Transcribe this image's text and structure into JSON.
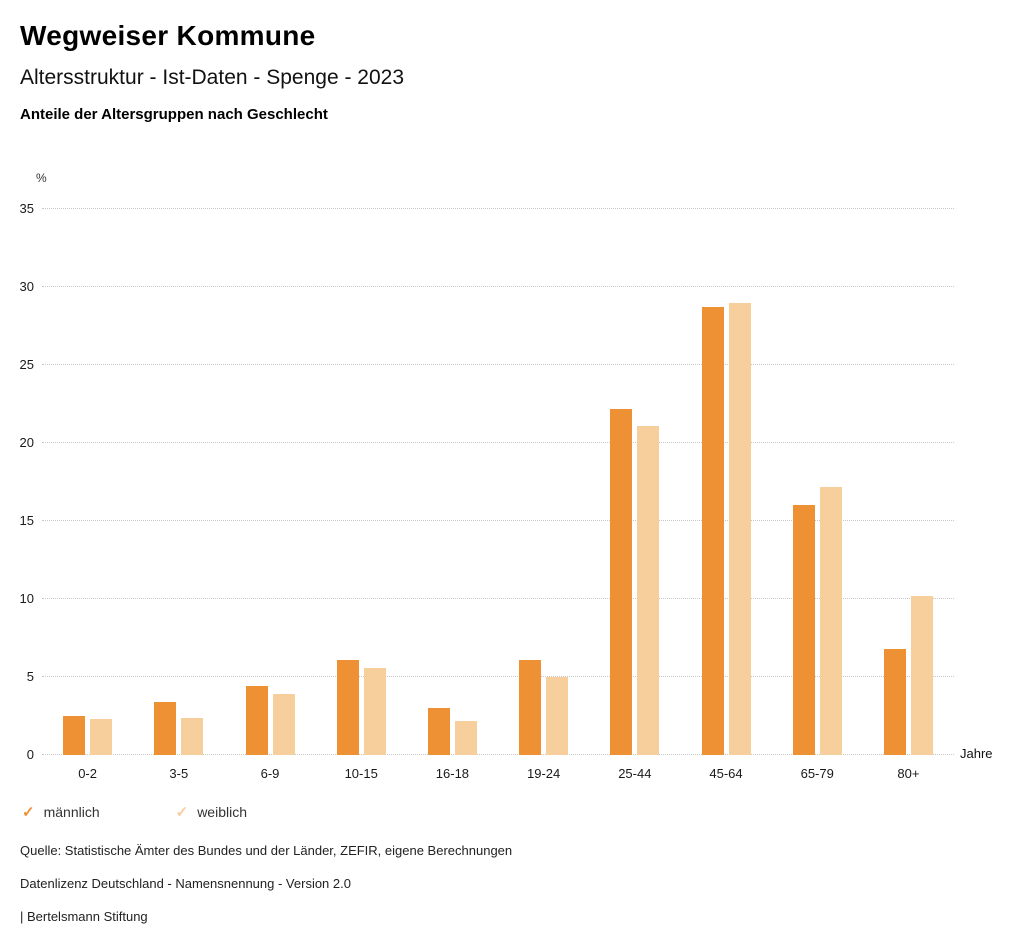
{
  "header": {
    "title": "Wegweiser Kommune",
    "subtitle": "Altersstruktur - Ist-Daten - Spenge - 2023",
    "chart_heading": "Anteile der Altersgruppen nach Geschlecht"
  },
  "axis": {
    "y_unit_label": "%",
    "x_unit_label": "Jahre"
  },
  "chart_data": {
    "type": "bar",
    "title": "Anteile der Altersgruppen nach Geschlecht",
    "categories": [
      "0-2",
      "3-5",
      "6-9",
      "10-15",
      "16-18",
      "19-24",
      "25-44",
      "45-64",
      "65-79",
      "80+"
    ],
    "series": [
      {
        "name": "männlich",
        "color": "#ED9134",
        "values": [
          2.5,
          3.4,
          4.4,
          6.1,
          3.0,
          6.1,
          22.2,
          28.7,
          16.0,
          6.8
        ]
      },
      {
        "name": "weiblich",
        "color": "#F7CF9D",
        "values": [
          2.3,
          2.4,
          3.9,
          5.6,
          2.2,
          5.0,
          21.1,
          29.0,
          17.2,
          10.2
        ]
      }
    ],
    "xlabel": "Jahre",
    "ylabel": "%",
    "ylim": [
      0,
      35
    ],
    "ytick": 5,
    "grid": "horizontal-dotted",
    "legend_position": "bottom-left"
  },
  "legend": {
    "items": [
      {
        "label": "männlich",
        "icon": "check-icon"
      },
      {
        "label": "weiblich",
        "icon": "check-icon"
      }
    ]
  },
  "footer": {
    "source": "Quelle: Statistische Ämter des Bundes und der Länder, ZEFIR, eigene Berechnungen",
    "license": "Datenlizenz Deutschland - Namensnennung - Version 2.0",
    "attribution": "| Bertelsmann Stiftung"
  }
}
